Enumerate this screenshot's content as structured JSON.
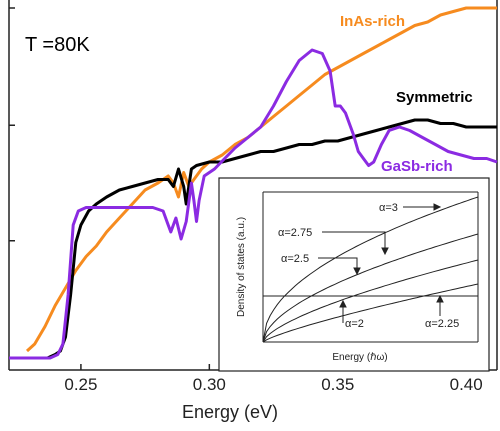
{
  "colors": {
    "inas": "#f68b1f",
    "gasb": "#8b2be2",
    "sym": "#000000"
  },
  "chart_data": [
    {
      "type": "line",
      "annotation": "T =80K",
      "xlabel": "Energy (eV)",
      "ylabel": "",
      "xlim": [
        0.222,
        0.412
      ],
      "ylim": [
        0,
        1
      ],
      "x_ticks": [
        "0.25",
        "0.30",
        "0.35",
        "0.40"
      ],
      "x_tick_values": [
        0.25,
        0.3,
        0.35,
        0.4
      ],
      "y_ticks_unlabeled": [
        0.0,
        0.335,
        0.665,
        1.0
      ],
      "grid": false,
      "legend": "inline labels",
      "series": [
        {
          "name": "InAs-rich",
          "color": "#f68b1f",
          "points": [
            [
              0.229,
              0.02
            ],
            [
              0.232,
              0.04
            ],
            [
              0.236,
              0.09
            ],
            [
              0.24,
              0.15
            ],
            [
              0.244,
              0.2
            ],
            [
              0.248,
              0.25
            ],
            [
              0.252,
              0.29
            ],
            [
              0.256,
              0.32
            ],
            [
              0.26,
              0.36
            ],
            [
              0.265,
              0.4
            ],
            [
              0.27,
              0.44
            ],
            [
              0.275,
              0.48
            ],
            [
              0.28,
              0.5
            ],
            [
              0.284,
              0.52
            ],
            [
              0.286,
              0.5
            ],
            [
              0.288,
              0.46
            ],
            [
              0.29,
              0.53
            ],
            [
              0.292,
              0.49
            ],
            [
              0.294,
              0.51
            ],
            [
              0.297,
              0.54
            ],
            [
              0.3,
              0.56
            ],
            [
              0.305,
              0.58
            ],
            [
              0.31,
              0.61
            ],
            [
              0.315,
              0.63
            ],
            [
              0.32,
              0.66
            ],
            [
              0.325,
              0.69
            ],
            [
              0.33,
              0.72
            ],
            [
              0.335,
              0.75
            ],
            [
              0.34,
              0.78
            ],
            [
              0.345,
              0.81
            ],
            [
              0.35,
              0.83
            ],
            [
              0.355,
              0.85
            ],
            [
              0.36,
              0.87
            ],
            [
              0.365,
              0.89
            ],
            [
              0.37,
              0.91
            ],
            [
              0.375,
              0.93
            ],
            [
              0.38,
              0.95
            ],
            [
              0.385,
              0.96
            ],
            [
              0.39,
              0.98
            ],
            [
              0.395,
              0.99
            ],
            [
              0.4,
              1.0
            ],
            [
              0.405,
              1.0
            ],
            [
              0.412,
              1.0
            ]
          ]
        },
        {
          "name": "Symmetric",
          "color": "#000000",
          "points": [
            [
              0.237,
              0.0
            ],
            [
              0.24,
              0.01
            ],
            [
              0.242,
              0.02
            ],
            [
              0.244,
              0.06
            ],
            [
              0.246,
              0.18
            ],
            [
              0.248,
              0.33
            ],
            [
              0.25,
              0.38
            ],
            [
              0.253,
              0.42
            ],
            [
              0.256,
              0.44
            ],
            [
              0.26,
              0.46
            ],
            [
              0.265,
              0.48
            ],
            [
              0.27,
              0.49
            ],
            [
              0.275,
              0.5
            ],
            [
              0.28,
              0.51
            ],
            [
              0.284,
              0.51
            ],
            [
              0.286,
              0.49
            ],
            [
              0.288,
              0.54
            ],
            [
              0.29,
              0.49
            ],
            [
              0.291,
              0.44
            ],
            [
              0.293,
              0.54
            ],
            [
              0.295,
              0.55
            ],
            [
              0.3,
              0.56
            ],
            [
              0.305,
              0.56
            ],
            [
              0.31,
              0.57
            ],
            [
              0.315,
              0.58
            ],
            [
              0.32,
              0.59
            ],
            [
              0.325,
              0.59
            ],
            [
              0.33,
              0.6
            ],
            [
              0.335,
              0.61
            ],
            [
              0.34,
              0.61
            ],
            [
              0.345,
              0.62
            ],
            [
              0.35,
              0.62
            ],
            [
              0.355,
              0.63
            ],
            [
              0.36,
              0.64
            ],
            [
              0.365,
              0.65
            ],
            [
              0.37,
              0.66
            ],
            [
              0.375,
              0.67
            ],
            [
              0.38,
              0.68
            ],
            [
              0.385,
              0.68
            ],
            [
              0.39,
              0.67
            ],
            [
              0.395,
              0.67
            ],
            [
              0.4,
              0.66
            ],
            [
              0.405,
              0.66
            ],
            [
              0.412,
              0.66
            ]
          ]
        },
        {
          "name": "GaSb-rich",
          "color": "#8b2be2",
          "points": [
            [
              0.222,
              0.0
            ],
            [
              0.238,
              0.0
            ],
            [
              0.241,
              0.01
            ],
            [
              0.243,
              0.04
            ],
            [
              0.245,
              0.18
            ],
            [
              0.247,
              0.38
            ],
            [
              0.249,
              0.42
            ],
            [
              0.252,
              0.43
            ],
            [
              0.258,
              0.43
            ],
            [
              0.265,
              0.43
            ],
            [
              0.272,
              0.43
            ],
            [
              0.278,
              0.43
            ],
            [
              0.282,
              0.42
            ],
            [
              0.284,
              0.38
            ],
            [
              0.285,
              0.36
            ],
            [
              0.287,
              0.4
            ],
            [
              0.289,
              0.34
            ],
            [
              0.291,
              0.39
            ],
            [
              0.293,
              0.5
            ],
            [
              0.294,
              0.45
            ],
            [
              0.295,
              0.39
            ],
            [
              0.296,
              0.45
            ],
            [
              0.298,
              0.52
            ],
            [
              0.302,
              0.54
            ],
            [
              0.306,
              0.57
            ],
            [
              0.31,
              0.6
            ],
            [
              0.315,
              0.63
            ],
            [
              0.32,
              0.66
            ],
            [
              0.325,
              0.72
            ],
            [
              0.33,
              0.79
            ],
            [
              0.335,
              0.85
            ],
            [
              0.34,
              0.88
            ],
            [
              0.344,
              0.87
            ],
            [
              0.347,
              0.82
            ],
            [
              0.349,
              0.72
            ],
            [
              0.351,
              0.72
            ],
            [
              0.353,
              0.7
            ],
            [
              0.356,
              0.64
            ],
            [
              0.358,
              0.59
            ],
            [
              0.36,
              0.57
            ],
            [
              0.362,
              0.55
            ],
            [
              0.364,
              0.56
            ],
            [
              0.367,
              0.61
            ],
            [
              0.37,
              0.65
            ],
            [
              0.374,
              0.66
            ],
            [
              0.378,
              0.65
            ],
            [
              0.383,
              0.63
            ],
            [
              0.388,
              0.61
            ],
            [
              0.393,
              0.59
            ],
            [
              0.398,
              0.58
            ],
            [
              0.403,
              0.57
            ],
            [
              0.408,
              0.57
            ],
            [
              0.412,
              0.56
            ]
          ]
        }
      ]
    },
    {
      "type": "line",
      "xlabel": "Energy (ℏω)",
      "ylabel": "Density of states (a.u.)",
      "grid": false,
      "axis_numbers": false,
      "annotations": [
        "α=3",
        "α=2.75",
        "α=2.5",
        "α=2",
        "α=2.25"
      ],
      "series_values": [
        2,
        2.25,
        2.5,
        2.75,
        3
      ]
    }
  ]
}
